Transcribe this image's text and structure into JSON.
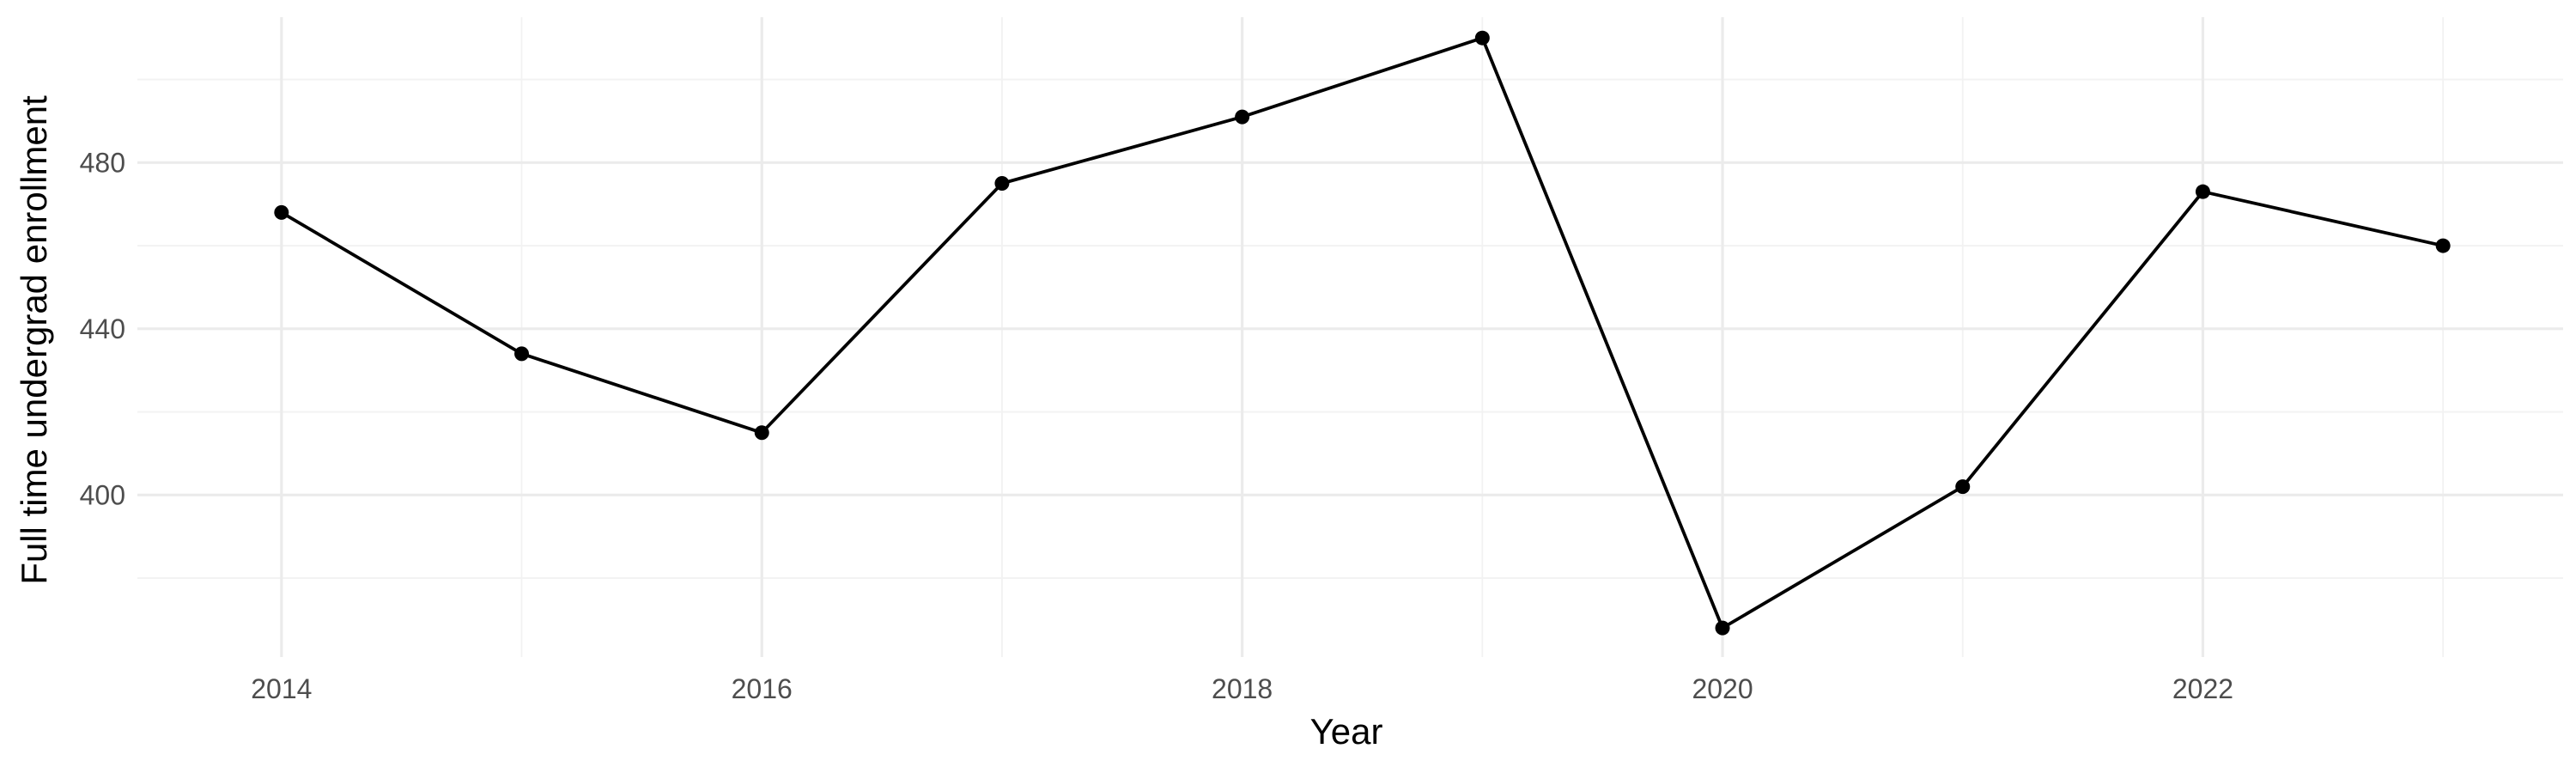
{
  "chart_data": {
    "type": "line",
    "title": "",
    "xlabel": "Year",
    "ylabel": "Full time undergrad enrollment",
    "x": [
      2014,
      2015,
      2016,
      2017,
      2018,
      2019,
      2020,
      2021,
      2022,
      2023
    ],
    "series": [
      {
        "values": [
          468,
          434,
          415,
          475,
          491,
          510,
          368,
          402,
          473,
          460
        ]
      }
    ],
    "xlim": [
      2013.4,
      2023.5
    ],
    "ylim": [
      361,
      515
    ],
    "x_ticks": [
      2014,
      2016,
      2018,
      2020,
      2022
    ],
    "x_tick_labels": [
      "2014",
      "2016",
      "2018",
      "2020",
      "2022"
    ],
    "x_minor_ticks": [
      2015,
      2017,
      2019,
      2021,
      2023
    ],
    "y_ticks": [
      400,
      440,
      480
    ],
    "y_tick_labels": [
      "400",
      "440",
      "480"
    ],
    "y_minor_ticks": [
      380,
      420,
      460,
      500
    ],
    "grid": true,
    "legend": "none",
    "colors": {
      "line": "#000000",
      "points": "#000000",
      "grid": "#ebebeb",
      "background": "#ffffff"
    }
  }
}
